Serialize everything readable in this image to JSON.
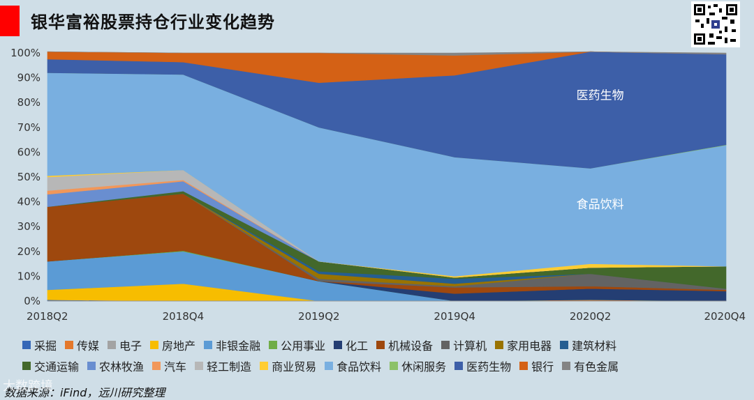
{
  "title": "银华富裕股票持仓行业变化趋势",
  "source": "数据来源：iFind，远川研究整理",
  "watermark": "大数跨境",
  "qr_icon": "qr-code-icon",
  "chart_data": {
    "type": "area",
    "stacked": true,
    "categories": [
      "2018Q2",
      "2018Q4",
      "2019Q2",
      "2019Q4",
      "2020Q2",
      "2020Q4"
    ],
    "ylim": [
      0,
      100
    ],
    "y_ticks": [
      "0%",
      "10%",
      "20%",
      "30%",
      "40%",
      "50%",
      "60%",
      "70%",
      "80%",
      "90%",
      "100%"
    ],
    "series": [
      {
        "name": "采掘",
        "color": "#3567b7",
        "values": [
          0.5,
          0,
          0,
          0,
          0,
          0
        ]
      },
      {
        "name": "传媒",
        "color": "#e4782b",
        "values": [
          0,
          0,
          0,
          0,
          0.5,
          0
        ]
      },
      {
        "name": "电子",
        "color": "#a3a3a3",
        "values": [
          0,
          0,
          0,
          0,
          0,
          0
        ]
      },
      {
        "name": "房地产",
        "color": "#f7bd00",
        "values": [
          4,
          7,
          0,
          0,
          0,
          0
        ]
      },
      {
        "name": "非银金融",
        "color": "#5b9bd5",
        "values": [
          11.5,
          13,
          8,
          0,
          0,
          0
        ]
      },
      {
        "name": "公用事业",
        "color": "#70ad47",
        "values": [
          0,
          0.3,
          0,
          0,
          0,
          0
        ]
      },
      {
        "name": "化工",
        "color": "#243e73",
        "values": [
          0,
          0,
          0,
          3,
          4.5,
          4
        ]
      },
      {
        "name": "机械设备",
        "color": "#9e480e",
        "values": [
          22,
          23,
          0,
          2.5,
          1,
          0.5
        ]
      },
      {
        "name": "计算机",
        "color": "#636363",
        "values": [
          0,
          0,
          1,
          0.5,
          5,
          0.5
        ]
      },
      {
        "name": "家用电器",
        "color": "#997300",
        "values": [
          0,
          0,
          2,
          1,
          0,
          0
        ]
      },
      {
        "name": "建筑材料",
        "color": "#255e91",
        "values": [
          0,
          0,
          1,
          2,
          0,
          0
        ]
      },
      {
        "name": "交通运输",
        "color": "#43682b",
        "values": [
          0,
          1,
          4,
          0.5,
          2.5,
          9
        ]
      },
      {
        "name": "农林牧渔",
        "color": "#698ed0",
        "values": [
          5,
          4,
          0,
          0,
          0,
          0
        ]
      },
      {
        "name": "汽车",
        "color": "#f1975a",
        "values": [
          1.5,
          0.5,
          0,
          0,
          0,
          0
        ]
      },
      {
        "name": "轻工制造",
        "color": "#b7b7b7",
        "values": [
          5.5,
          4,
          0,
          0,
          0,
          0
        ]
      },
      {
        "name": "商业贸易",
        "color": "#ffcd33",
        "values": [
          0.5,
          0,
          0,
          0.5,
          1.5,
          0
        ]
      },
      {
        "name": "食品饮料",
        "color": "#79afe0",
        "values": [
          41.5,
          38.5,
          54,
          48,
          38.5,
          48.8
        ]
      },
      {
        "name": "休闲服务",
        "color": "#8cc168",
        "values": [
          0,
          0,
          0,
          0,
          0,
          0.2
        ]
      },
      {
        "name": "医药生物",
        "color": "#3d5fa8",
        "values": [
          5.5,
          5,
          18,
          33,
          47,
          36.5
        ]
      },
      {
        "name": "银行",
        "color": "#d46115",
        "values": [
          3,
          3.7,
          12,
          8,
          0,
          0
        ]
      },
      {
        "name": "有色金属",
        "color": "#848484",
        "values": [
          0,
          0,
          0,
          1,
          0,
          0.5
        ]
      }
    ],
    "annotations": [
      {
        "text": "医药生物",
        "x": "2020Q2",
        "y": 83
      },
      {
        "text": "食品饮料",
        "x": "2020Q2",
        "y": 39
      }
    ]
  }
}
